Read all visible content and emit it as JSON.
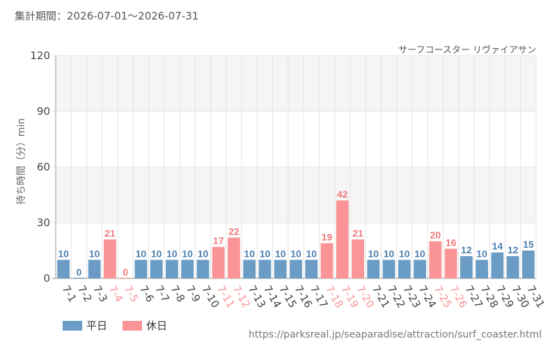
{
  "header": {
    "period": "集計期間：2026-07-01～2026-07-31"
  },
  "source_url": "https://parksreal.jp/seaparadise/attraction/surf_coaster.html",
  "colors": {
    "weekday": "#6a9cc5",
    "holiday": "#fb9496",
    "weekday_label": "#4d7fae",
    "holiday_label": "#f07a7c",
    "band": "#f5f5f5",
    "grid": "#e3e3e3"
  },
  "chart_data": {
    "type": "bar",
    "title": "サーフコースター リヴァイアサン",
    "xlabel": "",
    "ylabel": "待ち時間（分）min",
    "ylim": [
      0,
      120
    ],
    "yticks": [
      0,
      30,
      60,
      90,
      120
    ],
    "grid": true,
    "legend_position": "bottom-left",
    "categories": [
      "7-1",
      "7-2",
      "7-3",
      "7-4",
      "7-5",
      "7-6",
      "7-7",
      "7-8",
      "7-9",
      "7-10",
      "7-11",
      "7-12",
      "7-13",
      "7-14",
      "7-15",
      "7-16",
      "7-17",
      "7-18",
      "7-19",
      "7-20",
      "7-21",
      "7-22",
      "7-23",
      "7-24",
      "7-25",
      "7-26",
      "7-27",
      "7-28",
      "7-29",
      "7-30",
      "7-31"
    ],
    "values": [
      10,
      0,
      10,
      21,
      0,
      10,
      10,
      10,
      10,
      10,
      17,
      22,
      10,
      10,
      10,
      10,
      10,
      19,
      42,
      21,
      10,
      10,
      10,
      10,
      20,
      16,
      12,
      10,
      14,
      12,
      15
    ],
    "day_type": [
      "平日",
      "平日",
      "平日",
      "休日",
      "休日",
      "平日",
      "平日",
      "平日",
      "平日",
      "平日",
      "休日",
      "休日",
      "平日",
      "平日",
      "平日",
      "平日",
      "平日",
      "休日",
      "休日",
      "休日",
      "平日",
      "平日",
      "平日",
      "平日",
      "休日",
      "休日",
      "平日",
      "平日",
      "平日",
      "平日",
      "平日"
    ],
    "series": [
      {
        "name": "平日"
      },
      {
        "name": "休日"
      }
    ]
  }
}
